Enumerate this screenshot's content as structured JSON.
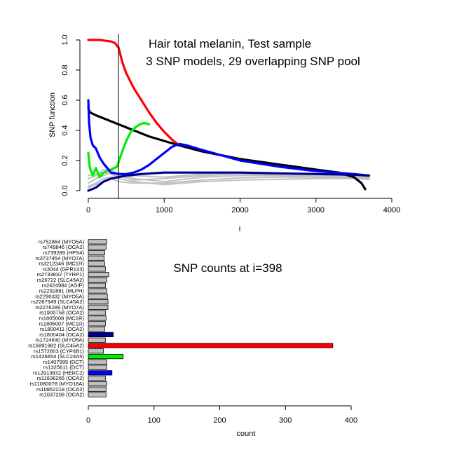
{
  "chart_data": [
    {
      "type": "line",
      "title": "Hair total melanin, Test sample",
      "subtitle": "3 SNP models, 29 overlapping SNP pool",
      "xlabel": "i",
      "ylabel": "SNP function",
      "xlim": [
        0,
        4000
      ],
      "ylim": [
        0,
        1.0
      ],
      "xticks": [
        "0",
        "1000",
        "2000",
        "3000",
        "4000"
      ],
      "yticks": [
        "0.0",
        "0.2",
        "0.4",
        "0.6",
        "0.8",
        "1.0"
      ],
      "vline_x": 398,
      "colors": {
        "red": "#ff0000",
        "black": "#000000",
        "green": "#00ee00",
        "blue": "#0000ff",
        "navy": "#00008b",
        "gray": "#c0c0c0"
      },
      "series": [
        {
          "color": "red",
          "x": [
            0,
            150,
            300,
            350,
            398,
            450,
            500,
            600,
            700,
            800,
            900,
            1000,
            1100,
            1200
          ],
          "y": [
            1.0,
            1.0,
            0.99,
            0.98,
            0.95,
            0.85,
            0.78,
            0.68,
            0.6,
            0.52,
            0.45,
            0.39,
            0.34,
            0.3
          ]
        },
        {
          "color": "black",
          "x": [
            0,
            20,
            100,
            200,
            300,
            398,
            500,
            600,
            800,
            1000,
            1200,
            1500,
            2000,
            2500,
            3000,
            3300,
            3500,
            3600,
            3650
          ],
          "y": [
            0.55,
            0.52,
            0.5,
            0.48,
            0.46,
            0.44,
            0.42,
            0.4,
            0.36,
            0.33,
            0.3,
            0.26,
            0.21,
            0.175,
            0.14,
            0.12,
            0.09,
            0.05,
            0.01
          ]
        },
        {
          "color": "green",
          "x": [
            0,
            20,
            60,
            100,
            150,
            200,
            300,
            380,
            440,
            500,
            560,
            620,
            680,
            740,
            800
          ],
          "y": [
            0.25,
            0.15,
            0.1,
            0.15,
            0.09,
            0.12,
            0.14,
            0.16,
            0.25,
            0.33,
            0.39,
            0.42,
            0.44,
            0.45,
            0.44
          ]
        },
        {
          "color": "blue",
          "x": [
            0,
            10,
            30,
            60,
            100,
            150,
            200,
            250,
            300,
            398,
            500,
            600,
            700,
            800,
            900,
            1000,
            1100,
            1200,
            1300,
            1500,
            2000,
            2500,
            3000,
            3500,
            3700
          ],
          "y": [
            0.6,
            0.45,
            0.35,
            0.3,
            0.28,
            0.22,
            0.18,
            0.15,
            0.12,
            0.11,
            0.11,
            0.12,
            0.14,
            0.17,
            0.21,
            0.25,
            0.29,
            0.31,
            0.3,
            0.27,
            0.2,
            0.16,
            0.13,
            0.11,
            0.1
          ]
        },
        {
          "color": "navy",
          "x": [
            0,
            50,
            100,
            200,
            300,
            398,
            500,
            700,
            1000,
            1500,
            2000,
            2500,
            3000,
            3500,
            3700
          ],
          "y": [
            0.0,
            0.01,
            0.02,
            0.06,
            0.08,
            0.09,
            0.1,
            0.11,
            0.12,
            0.12,
            0.12,
            0.115,
            0.11,
            0.105,
            0.1
          ]
        },
        {
          "color": "gray",
          "x": [
            0,
            100,
            200,
            300,
            398,
            600,
            1000,
            1500,
            2000,
            2500,
            3000,
            3500,
            3700
          ],
          "y": [
            0.05,
            0.08,
            0.1,
            0.12,
            0.12,
            0.08,
            0.06,
            0.09,
            0.1,
            0.1,
            0.09,
            0.08,
            0.08
          ]
        },
        {
          "color": "gray",
          "x": [
            0,
            100,
            200,
            300,
            398,
            600,
            1000,
            1500,
            2000,
            2500,
            3000,
            3500,
            3700
          ],
          "y": [
            0.02,
            0.04,
            0.06,
            0.08,
            0.06,
            0.05,
            0.05,
            0.07,
            0.085,
            0.09,
            0.09,
            0.085,
            0.08
          ]
        },
        {
          "color": "gray",
          "x": [
            0,
            100,
            200,
            300,
            398,
            600,
            1000,
            1500,
            2000,
            2500,
            3000,
            3500,
            3700
          ],
          "y": [
            0.08,
            0.1,
            0.14,
            0.14,
            0.1,
            0.07,
            0.08,
            0.1,
            0.11,
            0.105,
            0.1,
            0.09,
            0.085
          ]
        },
        {
          "color": "gray",
          "x": [
            0,
            100,
            200,
            300,
            398,
            600,
            1000,
            1500,
            2000,
            2500,
            3000,
            3500,
            3700
          ],
          "y": [
            0.03,
            0.05,
            0.08,
            0.09,
            0.08,
            0.06,
            0.04,
            0.06,
            0.07,
            0.075,
            0.08,
            0.08,
            0.075
          ]
        },
        {
          "color": "gray",
          "x": [
            0,
            100,
            200,
            300,
            398,
            600,
            1000,
            1500,
            2000,
            2500,
            3000,
            3500,
            3700
          ],
          "y": [
            0.1,
            0.11,
            0.12,
            0.11,
            0.09,
            0.1,
            0.09,
            0.11,
            0.12,
            0.115,
            0.11,
            0.1,
            0.095
          ]
        }
      ]
    },
    {
      "type": "bar",
      "orientation": "horizontal",
      "title": "SNP counts at i=398",
      "xlabel": "count",
      "xlim": [
        0,
        400
      ],
      "xticks": [
        "0",
        "100",
        "200",
        "300",
        "400"
      ],
      "categories": [
        "rs752864 (MYO5A)",
        "rs749846 (OCA2)",
        "rs739289 (HPS4)",
        "rs3737454 (MYO7A)",
        "rs3212346 (MC1R)",
        "rs3044 (GPR143)",
        "rs2733832 (TYRP1)",
        "rs26722 (SLC45A2)",
        "rs2424984 (ASIP)",
        "rs2292881 (MLPH)",
        "rs2290332 (MYO5A)",
        "rs2287949 (SLC45A2)",
        "rs2276289 (MYO7A)",
        "rs1900758 (OCA2)",
        "rs1805008 (MC1R)",
        "rs1805007 (MC1R)",
        "rs1800411 (OCA2)",
        "rs1800404 (OCA2)",
        "rs1724630 (MYO5A)",
        "rs16891982 (SLC45A2)",
        "rs1572603 (CYP4B1)",
        "rs1426654 (SLC24A5)",
        "rs1407995 (DCT)",
        "rs1325611 (DCT)",
        "rs12913832 (HERC2)",
        "rs11636265 (OCA2)",
        "rs11080078 (MYO18A)",
        "rs10852218 (OCA2)",
        "rs1037208 (OCA2)"
      ],
      "values": [
        28,
        27,
        25,
        24,
        25,
        26,
        31,
        28,
        26,
        28,
        29,
        30,
        30,
        26,
        27,
        26,
        25,
        38,
        26,
        372,
        23,
        53,
        28,
        28,
        36,
        26,
        28,
        27,
        27
      ],
      "bar_colors": [
        "#c0c0c0",
        "#c0c0c0",
        "#c0c0c0",
        "#c0c0c0",
        "#c0c0c0",
        "#c0c0c0",
        "#c0c0c0",
        "#c0c0c0",
        "#c0c0c0",
        "#c0c0c0",
        "#c0c0c0",
        "#c0c0c0",
        "#c0c0c0",
        "#c0c0c0",
        "#c0c0c0",
        "#c0c0c0",
        "#c0c0c0",
        "#00008b",
        "#c0c0c0",
        "#ff0000",
        "#c0c0c0",
        "#00ee00",
        "#c0c0c0",
        "#c0c0c0",
        "#0000ff",
        "#c0c0c0",
        "#c0c0c0",
        "#c0c0c0",
        "#c0c0c0"
      ]
    }
  ]
}
